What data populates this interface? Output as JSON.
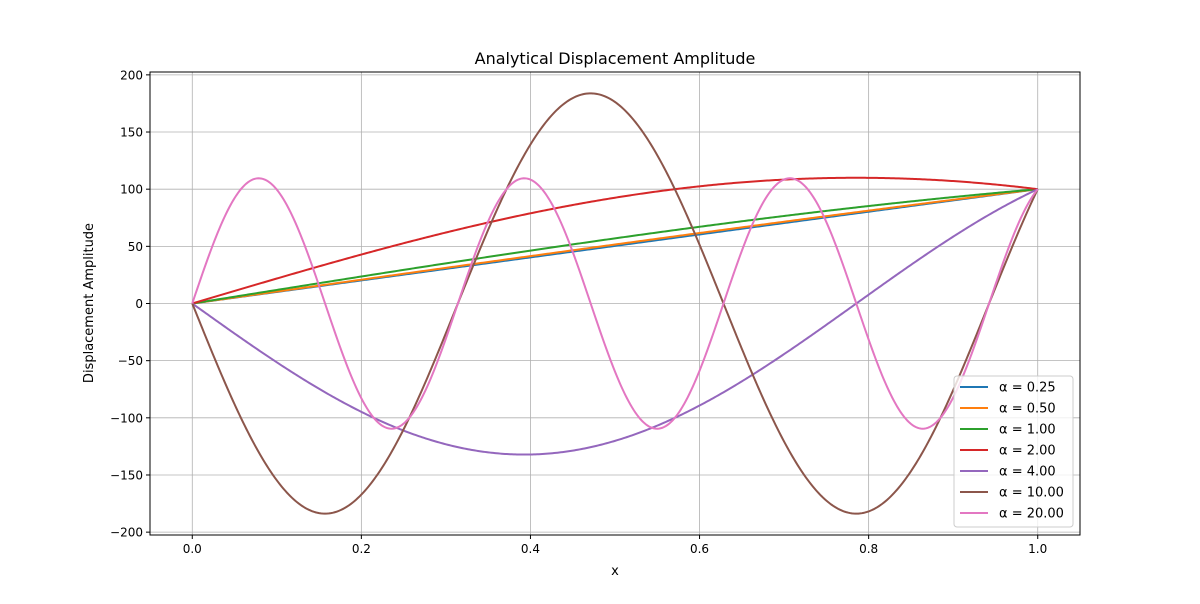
{
  "chart_data": {
    "type": "line",
    "title": "Analytical Displacement Amplitude",
    "xlabel": "x",
    "ylabel": "Displacement Amplitude",
    "xlim": [
      -0.05,
      1.05
    ],
    "ylim": [
      -202.5,
      202.5
    ],
    "xticks": [
      0.0,
      0.2,
      0.4,
      0.6,
      0.8,
      1.0
    ],
    "xtick_labels": [
      "0.0",
      "0.2",
      "0.4",
      "0.6",
      "0.8",
      "1.0"
    ],
    "yticks": [
      -200,
      -150,
      -100,
      -50,
      0,
      50,
      100,
      150,
      200
    ],
    "ytick_labels": [
      "−200",
      "−150",
      "−100",
      "−50",
      "0",
      "50",
      "100",
      "150",
      "200"
    ],
    "grid": true,
    "legend_position": "lower-right",
    "curve_function": "u(x) = 100 * sin(alpha*x) / sin(alpha)",
    "x_range": [
      0,
      1
    ],
    "series": [
      {
        "name": "α = 0.25",
        "alpha": 0.25,
        "color": "#1f77b4"
      },
      {
        "name": "α = 0.50",
        "alpha": 0.5,
        "color": "#ff7f0e"
      },
      {
        "name": "α = 1.00",
        "alpha": 1.0,
        "color": "#2ca02c"
      },
      {
        "name": "α = 2.00",
        "alpha": 2.0,
        "color": "#d62728"
      },
      {
        "name": "α = 4.00",
        "alpha": 4.0,
        "color": "#9467bd"
      },
      {
        "name": "α = 10.00",
        "alpha": 10.0,
        "color": "#8c564b"
      },
      {
        "name": "α = 20.00",
        "alpha": 20.0,
        "color": "#e377c2"
      }
    ]
  }
}
